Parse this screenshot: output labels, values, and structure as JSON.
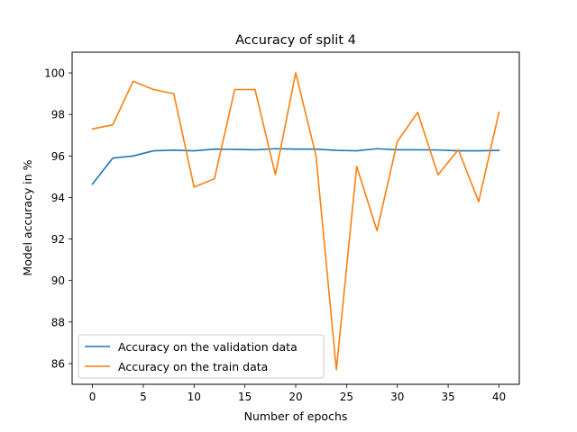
{
  "colors": {
    "validation": "#1f77b4",
    "train": "#ff7f0e",
    "axes": "#000000",
    "legend_border": "#cccccc",
    "background": "#ffffff"
  },
  "chart_data": {
    "type": "line",
    "title": "Accuracy of split 4",
    "xlabel": "Number of epochs",
    "ylabel": "Model accuracy in %",
    "xlim": [
      -2.0,
      42.0
    ],
    "ylim": [
      85.0,
      101.0
    ],
    "xticks": [
      0,
      5,
      10,
      15,
      20,
      25,
      30,
      35,
      40
    ],
    "xtick_labels": [
      "0",
      "5",
      "10",
      "15",
      "20",
      "25",
      "30",
      "35",
      "40"
    ],
    "yticks": [
      86,
      88,
      90,
      92,
      94,
      96,
      98,
      100
    ],
    "ytick_labels": [
      "86",
      "88",
      "90",
      "92",
      "94",
      "96",
      "98",
      "100"
    ],
    "grid": false,
    "legend_position": "lower-left",
    "x": [
      0,
      2,
      4,
      6,
      8,
      10,
      12,
      14,
      16,
      18,
      20,
      22,
      24,
      26,
      28,
      30,
      32,
      34,
      36,
      38,
      40
    ],
    "series": [
      {
        "name": "Accuracy on the validation data",
        "color_key": "validation",
        "values": [
          94.65,
          95.9,
          96.0,
          96.25,
          96.28,
          96.25,
          96.33,
          96.32,
          96.3,
          96.35,
          96.33,
          96.33,
          96.27,
          96.25,
          96.35,
          96.3,
          96.3,
          96.29,
          96.25,
          96.25,
          96.27
        ]
      },
      {
        "name": "Accuracy on the train data",
        "color_key": "train",
        "values": [
          97.3,
          97.5,
          99.6,
          99.2,
          99.0,
          94.5,
          94.9,
          99.2,
          99.2,
          95.1,
          100.0,
          96.0,
          85.7,
          95.5,
          92.4,
          96.7,
          98.1,
          95.1,
          96.3,
          93.8,
          98.1
        ]
      }
    ]
  }
}
